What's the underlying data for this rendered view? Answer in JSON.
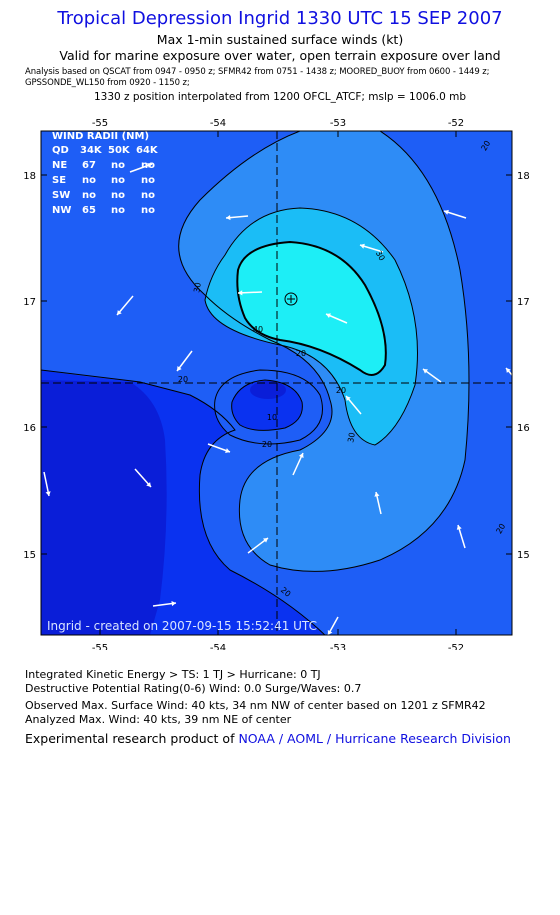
{
  "header": {
    "title": "Tropical Depression Ingrid 1330 UTC 15 SEP 2007",
    "subtitle1": "Max 1-min sustained surface winds (kt)",
    "subtitle2": "Valid for marine exposure over water, open terrain exposure over land",
    "sources_line1": "Analysis based on  QSCAT from 0947 - 0950 z;  SFMR42 from 0751 - 1438 z;  MOORED_BUOY from 0600 - 1449 z;",
    "sources_line2": "GPSSONDE_WL150 from 0920 - 1150 z;",
    "position_line": "1330 z position interpolated from 1200 OFCL_ATCF; mslp = 1006.0 mb"
  },
  "map": {
    "lon_ticks": [
      "-55",
      "-54",
      "-53",
      "-52"
    ],
    "lat_ticks": [
      "18",
      "17",
      "16",
      "15"
    ],
    "contour_labels": [
      "20",
      "20",
      "20",
      "20",
      "30",
      "30",
      "30",
      "40",
      "20",
      "10",
      "20",
      "20"
    ],
    "colors": {
      "lt20": "#0a32f0",
      "20to30": "#1e5ef6",
      "30to40": "#2e8cf6",
      "40to50": "#1bbdf6",
      "gt50": "#1deef6",
      "deep": "#0a1ed8",
      "arrow": "#ffffff",
      "contour": "#000000"
    },
    "center_marker": "circle-plus-icon",
    "watermark": "Ingrid - created on 2007-09-15 15:52:41 UTC",
    "wind_radii": {
      "title": "WIND RADII (NM)",
      "header": [
        "QD",
        "34K",
        "50K",
        "64K"
      ],
      "rows": [
        [
          "NE",
          "67",
          "no",
          "no"
        ],
        [
          "SE",
          "no",
          "no",
          "no"
        ],
        [
          "SW",
          "no",
          "no",
          "no"
        ],
        [
          "NW",
          "65",
          "no",
          "no"
        ]
      ]
    }
  },
  "footer": {
    "ike": "Integrated Kinetic Energy > TS: 1 TJ   > Hurricane: 0 TJ",
    "dpr": "Destructive Potential Rating(0-6)   Wind: 0.0 Surge/Waves: 0.7",
    "observed": "Observed Max. Surface Wind: 40 kts, 34 nm NW of center based on 1201 z SFMR42",
    "analyzed": "Analyzed Max. Wind: 40 kts, 39 nm NE of center",
    "credit_prefix": "Experimental research product of ",
    "credit_org": "NOAA / AOML / Hurricane Research Division"
  }
}
